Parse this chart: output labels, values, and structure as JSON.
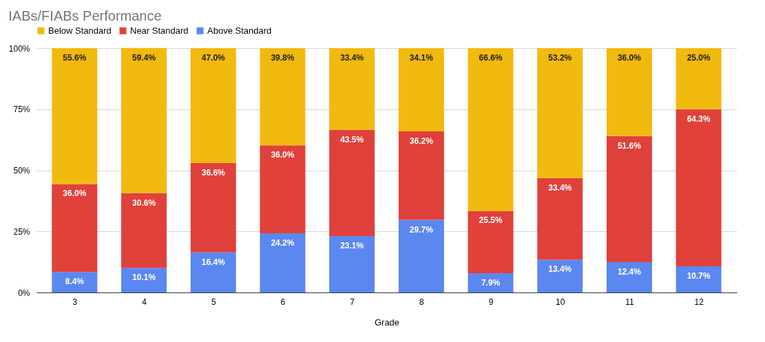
{
  "chart_data": {
    "type": "bar",
    "title": "IABs/FIABs Performance",
    "xlabel": "Grade",
    "categories": [
      "3",
      "4",
      "5",
      "6",
      "7",
      "8",
      "9",
      "10",
      "11",
      "12"
    ],
    "stacked": true,
    "legend": "top",
    "grid": "y",
    "ylim": [
      0,
      100
    ],
    "yticks": [
      {
        "value": 0,
        "label": "0%"
      },
      {
        "value": 25,
        "label": "25%"
      },
      {
        "value": 50,
        "label": "50%"
      },
      {
        "value": 75,
        "label": "75%"
      },
      {
        "value": 100,
        "label": "100%"
      }
    ],
    "series": [
      {
        "name": "Above Standard",
        "color": "#5b87f0",
        "values": [
          8.4,
          10.1,
          16.4,
          24.2,
          23.1,
          29.7,
          7.9,
          13.4,
          12.4,
          10.7
        ],
        "value_labels": [
          "8.4%",
          "10.1%",
          "16.4%",
          "24.2%",
          "23.1%",
          "29.7%",
          "7.9%",
          "13.4%",
          "12.4%",
          "10.7%"
        ]
      },
      {
        "name": "Near Standard",
        "color": "#e0413a",
        "values": [
          36.0,
          30.6,
          36.6,
          36.0,
          43.5,
          36.2,
          25.5,
          33.4,
          51.6,
          64.3
        ],
        "value_labels": [
          "36.0%",
          "30.6%",
          "36.6%",
          "36.0%",
          "43.5%",
          "36.2%",
          "25.5%",
          "33.4%",
          "51.6%",
          "64.3%"
        ]
      },
      {
        "name": "Below Standard",
        "color": "#f2b90f",
        "values": [
          55.6,
          59.4,
          47.0,
          39.8,
          33.4,
          34.1,
          66.6,
          53.2,
          36.0,
          25.0
        ],
        "value_labels": [
          "55.6%",
          "59.4%",
          "47.0%",
          "39.8%",
          "33.4%",
          "34.1%",
          "66.6%",
          "53.2%",
          "36.0%",
          "25.0%"
        ]
      }
    ]
  }
}
